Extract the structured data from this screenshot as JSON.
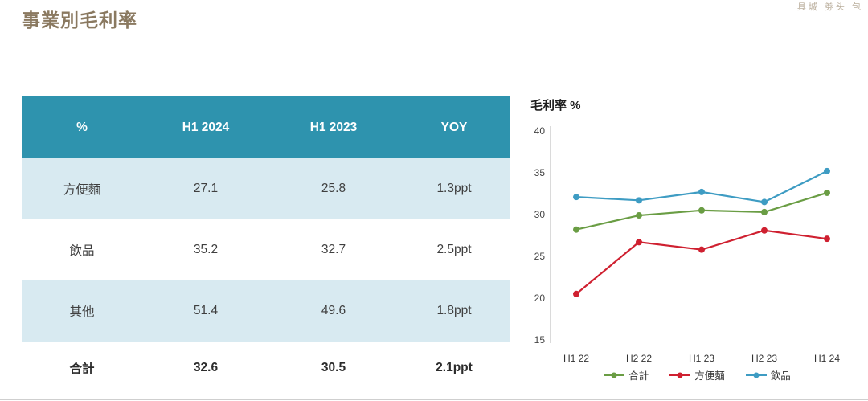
{
  "page": {
    "title": "事業別毛利率",
    "watermark": "具城 劵头 包"
  },
  "table": {
    "headers": [
      "%",
      "H1 2024",
      "H1 2023",
      "YOY"
    ],
    "rows": [
      [
        "方便麵",
        "27.1",
        "25.8",
        "1.3ppt"
      ],
      [
        "飲品",
        "35.2",
        "32.7",
        "2.5ppt"
      ],
      [
        "其他",
        "51.4",
        "49.6",
        "1.8ppt"
      ],
      [
        "合計",
        "32.6",
        "30.5",
        "2.1ppt"
      ]
    ]
  },
  "chart_data": {
    "type": "line",
    "title": "毛利率 %",
    "categories": [
      "H1 22",
      "H2 22",
      "H1 23",
      "H2 23",
      "H1 24"
    ],
    "series": [
      {
        "name": "合計",
        "color": "#6a9d44",
        "values": [
          28.2,
          29.9,
          30.5,
          30.3,
          32.6
        ]
      },
      {
        "name": "方便麵",
        "color": "#cf2030",
        "values": [
          20.5,
          26.7,
          25.8,
          28.1,
          27.1
        ]
      },
      {
        "name": "飲品",
        "color": "#3e9cc3",
        "values": [
          32.1,
          31.7,
          32.7,
          31.5,
          35.2
        ]
      }
    ],
    "ylim": [
      15,
      40
    ],
    "yticks": [
      40,
      35,
      30,
      25,
      20,
      15
    ],
    "ylabel": "毛利率 %",
    "grid": false,
    "legend_position": "bottom"
  },
  "colors": {
    "table_header_bg": "#2e93ae",
    "table_alt_row_bg": "#d8eaf1",
    "title_color": "#8a7960",
    "axis_color": "#b5b5b5"
  }
}
